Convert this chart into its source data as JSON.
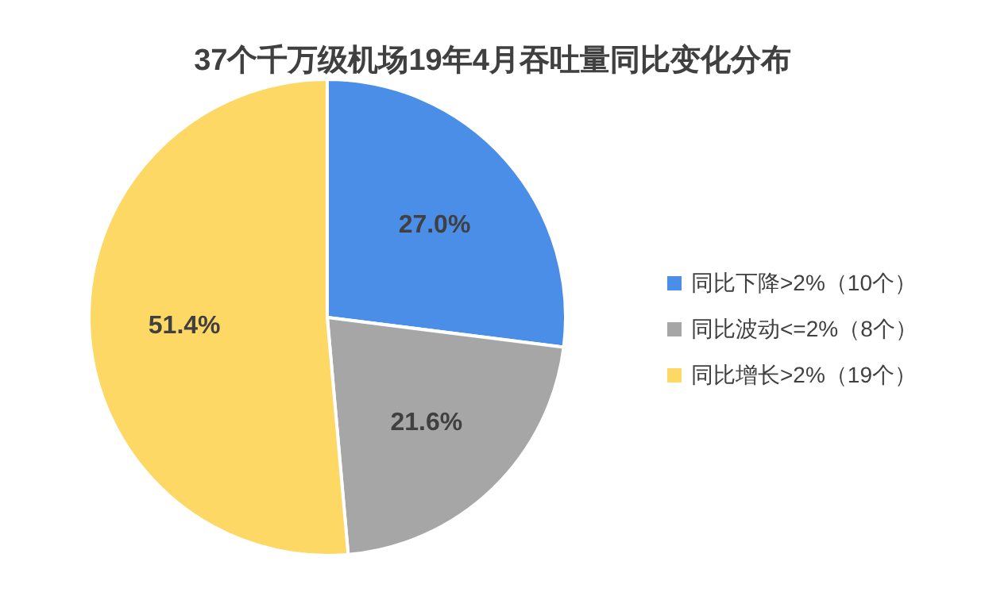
{
  "chart_data": {
    "type": "pie",
    "title": "37个千万级机场19年4月吞吐量同比变化分布",
    "categories": [
      "同比下降>2%（10个）",
      "同比波动<=2%（8个）",
      "同比增长>2%（19个）"
    ],
    "values": [
      27.0,
      21.6,
      51.4
    ],
    "colors": [
      "#4a8ee8",
      "#a6a6a6",
      "#fdd865"
    ],
    "value_labels": [
      "27.0%",
      "21.6%",
      "51.4%"
    ],
    "legend": "right"
  }
}
